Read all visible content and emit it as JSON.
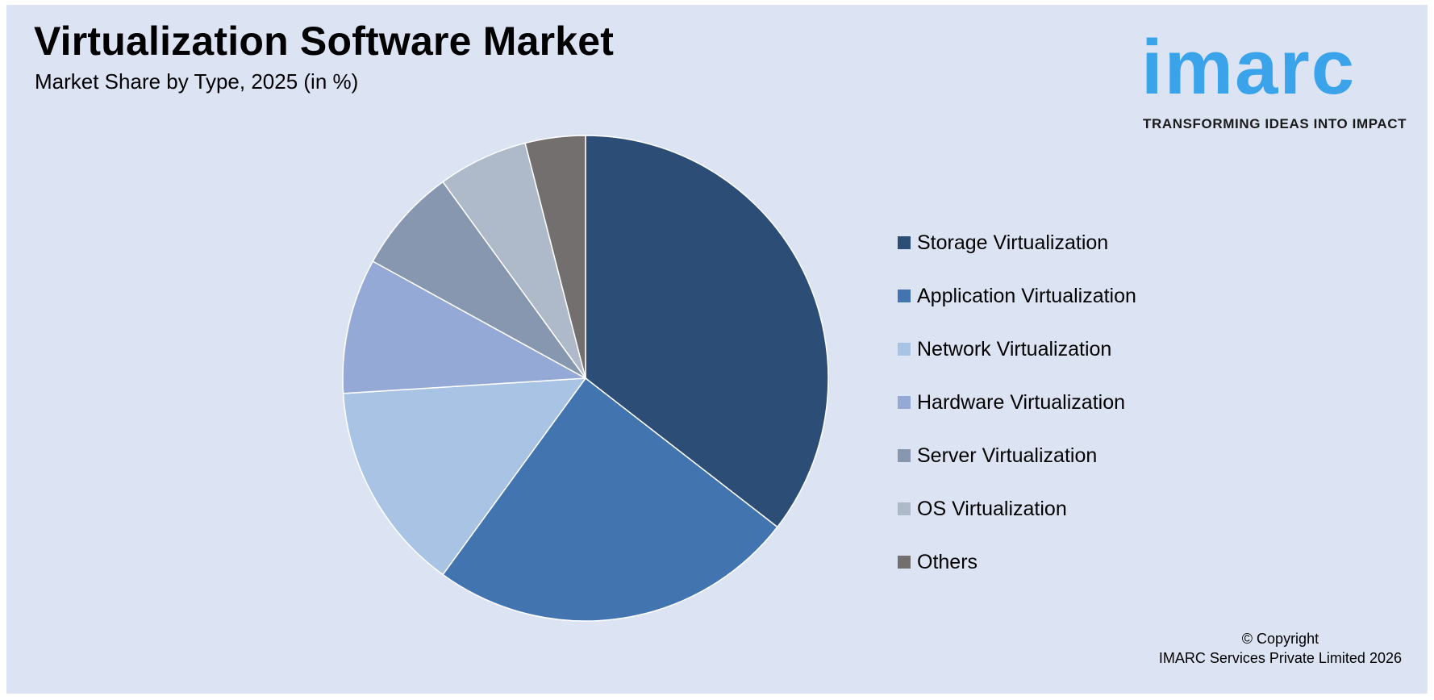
{
  "header": {
    "title": "Virtualization Software Market",
    "subtitle": "Market Share by Type, 2025 (in %)"
  },
  "logo": {
    "word": "imarc",
    "tagline": "TRANSFORMING IDEAS INTO IMPACT",
    "color": "#3aa3ea"
  },
  "chart_data": {
    "type": "pie",
    "title": "Virtualization Software Market",
    "subtitle": "Market Share by Type, 2025 (in %)",
    "legend_position": "right",
    "categories": [
      "Storage Virtualization",
      "Application Virtualization",
      "Network Virtualization",
      "Hardware Virtualization",
      "Server Virtualization",
      "OS Virtualization",
      "Others"
    ],
    "values": [
      35.5,
      24.5,
      14.0,
      9.0,
      7.0,
      6.0,
      4.0
    ],
    "colors": [
      "#2c4d76",
      "#4274b0",
      "#a8c3e3",
      "#95a9d7",
      "#8797af",
      "#aeb9c9",
      "#736f6f"
    ]
  },
  "footer": {
    "copyright_line1": "© Copyright",
    "copyright_line2": "IMARC Services Private Limited 2026"
  }
}
